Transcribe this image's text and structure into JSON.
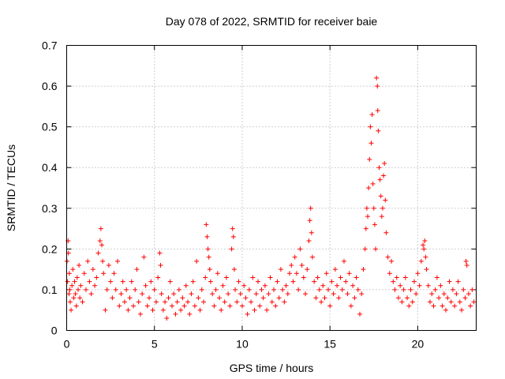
{
  "chart_data": {
    "type": "scatter",
    "title": "Day 078 of 2022, SRMTID for receiver baie",
    "xlabel": "GPS time / hours",
    "ylabel": "SRMTID / TECUs",
    "xlim": [
      0,
      23.33
    ],
    "ylim": [
      0,
      0.7
    ],
    "x_ticks": [
      0,
      5,
      10,
      15,
      20
    ],
    "y_ticks": [
      0,
      0.1,
      0.2,
      0.3,
      0.4,
      0.5,
      0.6,
      0.7
    ],
    "x_tick_labels": [
      "0",
      "5",
      "10",
      "15",
      "20"
    ],
    "y_tick_labels": [
      "0",
      "0.1",
      "0.2",
      "0.3",
      "0.4",
      "0.5",
      "0.6",
      "0.7"
    ],
    "grid": true,
    "marker": "+",
    "color": "#ff0000",
    "series": [
      {
        "name": "SRMTID",
        "points": [
          [
            0.02,
            0.17
          ],
          [
            0.05,
            0.12
          ],
          [
            0.08,
            0.22
          ],
          [
            0.1,
            0.19
          ],
          [
            0.13,
            0.09
          ],
          [
            0.15,
            0.14
          ],
          [
            0.18,
            0.1
          ],
          [
            0.2,
            0.07
          ],
          [
            0.25,
            0.05
          ],
          [
            0.3,
            0.11
          ],
          [
            0.35,
            0.15
          ],
          [
            0.4,
            0.08
          ],
          [
            0.45,
            0.12
          ],
          [
            0.5,
            0.09
          ],
          [
            0.55,
            0.06
          ],
          [
            0.6,
            0.13
          ],
          [
            0.65,
            0.1
          ],
          [
            0.7,
            0.16
          ],
          [
            0.75,
            0.08
          ],
          [
            0.8,
            0.11
          ],
          [
            0.9,
            0.07
          ],
          [
            1.0,
            0.14
          ],
          [
            1.1,
            0.1
          ],
          [
            1.2,
            0.17
          ],
          [
            1.3,
            0.12
          ],
          [
            1.4,
            0.09
          ],
          [
            1.5,
            0.15
          ],
          [
            1.6,
            0.11
          ],
          [
            1.7,
            0.13
          ],
          [
            1.8,
            0.19
          ],
          [
            1.9,
            0.22
          ],
          [
            1.95,
            0.25
          ],
          [
            2.0,
            0.21
          ],
          [
            2.05,
            0.17
          ],
          [
            2.1,
            0.14
          ],
          [
            2.2,
            0.05
          ],
          [
            2.3,
            0.1
          ],
          [
            2.4,
            0.16
          ],
          [
            2.5,
            0.12
          ],
          [
            2.6,
            0.08
          ],
          [
            2.7,
            0.14
          ],
          [
            2.8,
            0.1
          ],
          [
            2.9,
            0.17
          ],
          [
            3.0,
            0.06
          ],
          [
            3.1,
            0.09
          ],
          [
            3.2,
            0.12
          ],
          [
            3.3,
            0.07
          ],
          [
            3.4,
            0.1
          ],
          [
            3.5,
            0.05
          ],
          [
            3.6,
            0.08
          ],
          [
            3.7,
            0.12
          ],
          [
            3.8,
            0.06
          ],
          [
            3.9,
            0.1
          ],
          [
            4.0,
            0.15
          ],
          [
            4.1,
            0.07
          ],
          [
            4.2,
            0.04
          ],
          [
            4.3,
            0.09
          ],
          [
            4.4,
            0.18
          ],
          [
            4.5,
            0.11
          ],
          [
            4.6,
            0.06
          ],
          [
            4.7,
            0.08
          ],
          [
            4.8,
            0.12
          ],
          [
            4.9,
            0.05
          ],
          [
            5.0,
            0.1
          ],
          [
            5.1,
            0.07
          ],
          [
            5.2,
            0.13
          ],
          [
            5.3,
            0.19
          ],
          [
            5.35,
            0.16
          ],
          [
            5.4,
            0.09
          ],
          [
            5.5,
            0.05
          ],
          [
            5.6,
            0.07
          ],
          [
            5.7,
            0.03
          ],
          [
            5.8,
            0.08
          ],
          [
            5.9,
            0.12
          ],
          [
            6.0,
            0.06
          ],
          [
            6.1,
            0.09
          ],
          [
            6.2,
            0.04
          ],
          [
            6.3,
            0.07
          ],
          [
            6.4,
            0.1
          ],
          [
            6.5,
            0.05
          ],
          [
            6.6,
            0.08
          ],
          [
            6.7,
            0.06
          ],
          [
            6.8,
            0.11
          ],
          [
            6.9,
            0.07
          ],
          [
            7.0,
            0.04
          ],
          [
            7.1,
            0.09
          ],
          [
            7.2,
            0.12
          ],
          [
            7.3,
            0.06
          ],
          [
            7.4,
            0.17
          ],
          [
            7.5,
            0.08
          ],
          [
            7.6,
            0.05
          ],
          [
            7.7,
            0.1
          ],
          [
            7.8,
            0.07
          ],
          [
            7.9,
            0.13
          ],
          [
            7.95,
            0.26
          ],
          [
            8.0,
            0.23
          ],
          [
            8.05,
            0.2
          ],
          [
            8.1,
            0.18
          ],
          [
            8.15,
            0.15
          ],
          [
            8.2,
            0.12
          ],
          [
            8.3,
            0.09
          ],
          [
            8.4,
            0.06
          ],
          [
            8.5,
            0.1
          ],
          [
            8.6,
            0.14
          ],
          [
            8.7,
            0.08
          ],
          [
            8.8,
            0.05
          ],
          [
            8.9,
            0.11
          ],
          [
            9.0,
            0.07
          ],
          [
            9.1,
            0.13
          ],
          [
            9.2,
            0.09
          ],
          [
            9.3,
            0.06
          ],
          [
            9.4,
            0.2
          ],
          [
            9.45,
            0.25
          ],
          [
            9.5,
            0.23
          ],
          [
            9.55,
            0.15
          ],
          [
            9.6,
            0.1
          ],
          [
            9.7,
            0.07
          ],
          [
            9.8,
            0.12
          ],
          [
            9.9,
            0.09
          ],
          [
            10.0,
            0.06
          ],
          [
            10.1,
            0.11
          ],
          [
            10.2,
            0.08
          ],
          [
            10.3,
            0.04
          ],
          [
            10.4,
            0.1
          ],
          [
            10.5,
            0.07
          ],
          [
            10.6,
            0.13
          ],
          [
            10.7,
            0.05
          ],
          [
            10.8,
            0.09
          ],
          [
            10.9,
            0.12
          ],
          [
            11.0,
            0.06
          ],
          [
            11.1,
            0.1
          ],
          [
            11.2,
            0.08
          ],
          [
            11.3,
            0.11
          ],
          [
            11.4,
            0.05
          ],
          [
            11.5,
            0.09
          ],
          [
            11.6,
            0.13
          ],
          [
            11.7,
            0.07
          ],
          [
            11.8,
            0.1
          ],
          [
            11.9,
            0.06
          ],
          [
            12.0,
            0.12
          ],
          [
            12.1,
            0.08
          ],
          [
            12.2,
            0.15
          ],
          [
            12.3,
            0.1
          ],
          [
            12.4,
            0.07
          ],
          [
            12.5,
            0.11
          ],
          [
            12.6,
            0.09
          ],
          [
            12.7,
            0.14
          ],
          [
            12.8,
            0.16
          ],
          [
            12.9,
            0.12
          ],
          [
            13.0,
            0.18
          ],
          [
            13.1,
            0.14
          ],
          [
            13.2,
            0.1
          ],
          [
            13.3,
            0.2
          ],
          [
            13.4,
            0.16
          ],
          [
            13.5,
            0.13
          ],
          [
            13.6,
            0.09
          ],
          [
            13.7,
            0.15
          ],
          [
            13.8,
            0.22
          ],
          [
            13.85,
            0.27
          ],
          [
            13.9,
            0.3
          ],
          [
            13.95,
            0.24
          ],
          [
            14.0,
            0.18
          ],
          [
            14.1,
            0.12
          ],
          [
            14.2,
            0.08
          ],
          [
            14.3,
            0.13
          ],
          [
            14.4,
            0.1
          ],
          [
            14.5,
            0.07
          ],
          [
            14.6,
            0.11
          ],
          [
            14.7,
            0.08
          ],
          [
            14.8,
            0.14
          ],
          [
            14.9,
            0.1
          ],
          [
            15.0,
            0.06
          ],
          [
            15.1,
            0.12
          ],
          [
            15.2,
            0.09
          ],
          [
            15.3,
            0.15
          ],
          [
            15.4,
            0.11
          ],
          [
            15.5,
            0.08
          ],
          [
            15.6,
            0.13
          ],
          [
            15.7,
            0.1
          ],
          [
            15.8,
            0.17
          ],
          [
            15.9,
            0.12
          ],
          [
            16.0,
            0.09
          ],
          [
            16.1,
            0.14
          ],
          [
            16.2,
            0.06
          ],
          [
            16.3,
            0.11
          ],
          [
            16.4,
            0.08
          ],
          [
            16.5,
            0.13
          ],
          [
            16.6,
            0.1
          ],
          [
            16.7,
            0.04
          ],
          [
            16.8,
            0.09
          ],
          [
            16.9,
            0.15
          ],
          [
            17.0,
            0.2
          ],
          [
            17.05,
            0.25
          ],
          [
            17.1,
            0.3
          ],
          [
            17.15,
            0.28
          ],
          [
            17.2,
            0.35
          ],
          [
            17.25,
            0.42
          ],
          [
            17.3,
            0.5
          ],
          [
            17.35,
            0.46
          ],
          [
            17.4,
            0.53
          ],
          [
            17.45,
            0.36
          ],
          [
            17.5,
            0.3
          ],
          [
            17.55,
            0.26
          ],
          [
            17.6,
            0.2
          ],
          [
            17.65,
            0.62
          ],
          [
            17.7,
            0.6
          ],
          [
            17.72,
            0.54
          ],
          [
            17.75,
            0.49
          ],
          [
            17.8,
            0.4
          ],
          [
            17.85,
            0.37
          ],
          [
            17.9,
            0.33
          ],
          [
            17.95,
            0.28
          ],
          [
            18.0,
            0.3
          ],
          [
            18.05,
            0.38
          ],
          [
            18.1,
            0.41
          ],
          [
            18.15,
            0.32
          ],
          [
            18.2,
            0.24
          ],
          [
            18.3,
            0.18
          ],
          [
            18.4,
            0.14
          ],
          [
            18.5,
            0.17
          ],
          [
            18.6,
            0.12
          ],
          [
            18.7,
            0.1
          ],
          [
            18.8,
            0.13
          ],
          [
            18.9,
            0.08
          ],
          [
            19.0,
            0.11
          ],
          [
            19.1,
            0.07
          ],
          [
            19.2,
            0.1
          ],
          [
            19.3,
            0.13
          ],
          [
            19.4,
            0.08
          ],
          [
            19.5,
            0.06
          ],
          [
            19.6,
            0.1
          ],
          [
            19.7,
            0.07
          ],
          [
            19.8,
            0.12
          ],
          [
            19.9,
            0.09
          ],
          [
            20.0,
            0.14
          ],
          [
            20.1,
            0.11
          ],
          [
            20.2,
            0.17
          ],
          [
            20.3,
            0.21
          ],
          [
            20.35,
            0.2
          ],
          [
            20.4,
            0.22
          ],
          [
            20.45,
            0.18
          ],
          [
            20.5,
            0.15
          ],
          [
            20.6,
            0.11
          ],
          [
            20.7,
            0.07
          ],
          [
            20.8,
            0.09
          ],
          [
            20.9,
            0.06
          ],
          [
            21.0,
            0.1
          ],
          [
            21.1,
            0.13
          ],
          [
            21.2,
            0.08
          ],
          [
            21.3,
            0.11
          ],
          [
            21.4,
            0.06
          ],
          [
            21.5,
            0.09
          ],
          [
            21.6,
            0.05
          ],
          [
            21.7,
            0.08
          ],
          [
            21.8,
            0.12
          ],
          [
            21.9,
            0.07
          ],
          [
            22.0,
            0.1
          ],
          [
            22.1,
            0.06
          ],
          [
            22.2,
            0.09
          ],
          [
            22.3,
            0.12
          ],
          [
            22.4,
            0.07
          ],
          [
            22.5,
            0.05
          ],
          [
            22.6,
            0.1
          ],
          [
            22.7,
            0.08
          ],
          [
            22.75,
            0.17
          ],
          [
            22.8,
            0.16
          ],
          [
            22.9,
            0.09
          ],
          [
            23.0,
            0.06
          ],
          [
            23.1,
            0.1
          ],
          [
            23.2,
            0.07
          ]
        ]
      }
    ]
  }
}
